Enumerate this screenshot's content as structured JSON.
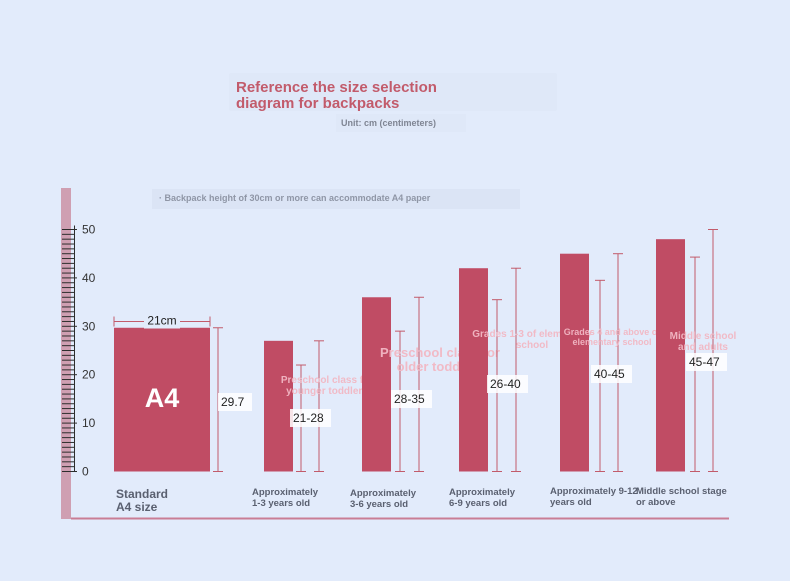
{
  "header": {
    "title": "Reference the size selection\ndiagram for backpacks",
    "unit": "Unit: cm (centimeters)",
    "note": "· Backpack height of 30cm or more can accommodate A4 paper"
  },
  "colors": {
    "background": "#e2ebfb",
    "bar": "#c04c64",
    "line": "#c25b6b",
    "title": "#c25b6b"
  },
  "chart_data": {
    "type": "bar",
    "ylim": [
      0,
      50
    ],
    "yticks": [
      0,
      10,
      20,
      30,
      40,
      50
    ],
    "categories": [
      "Standard\nA4 size",
      "Approximately\n1-3 years old",
      "Approximately\n3-6 years old",
      "Approximately\n6-9 years old",
      "Approximately 9-12\nyears old",
      "Middle school stage\nor above"
    ],
    "bar_labels": [
      "A4",
      "Preschool class for\nyounger toddlers",
      "Preschool class for\nolder toddlers",
      "Grades 1-3 of elementary\nschool",
      "Grades 4 and above of\nelementary school",
      "Middle school\nand adults"
    ],
    "values": [
      29.7,
      27,
      36,
      42,
      45,
      48
    ],
    "range_labels": [
      "29.7",
      "21-28",
      "28-35",
      "26-40",
      "40-45",
      "45-47"
    ],
    "ranges": [
      [
        0,
        29.7
      ],
      [
        0,
        22
      ],
      [
        0,
        29
      ],
      [
        0,
        35.5
      ],
      [
        0,
        39.5
      ],
      [
        0,
        44.3
      ]
    ],
    "outer_ranges": [
      null,
      [
        0,
        27
      ],
      [
        0,
        36
      ],
      [
        0,
        42
      ],
      [
        0,
        45
      ],
      [
        0,
        50
      ]
    ],
    "width_annotation": {
      "label": "21cm",
      "value": 21
    }
  }
}
